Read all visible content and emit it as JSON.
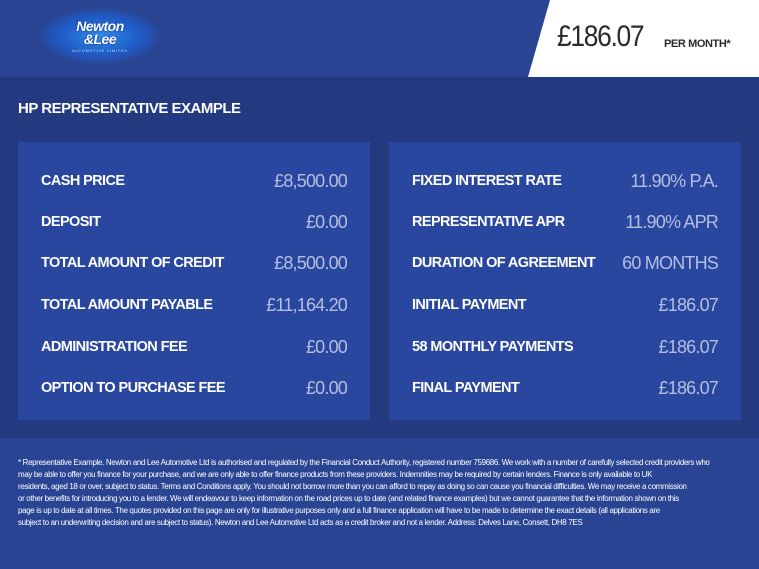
{
  "header": {
    "logo": {
      "name": "Newton & Lee",
      "tagline": "AUTOMOTIVE LIMITED"
    },
    "price": "£186.07",
    "price_suffix": "PER MONTH*"
  },
  "section_title": "HP REPRESENTATIVE EXAMPLE",
  "left_panel": [
    {
      "label": "CASH PRICE",
      "value": "£8,500.00"
    },
    {
      "label": "DEPOSIT",
      "value": "£0.00"
    },
    {
      "label": "TOTAL AMOUNT OF CREDIT",
      "value": "£8,500.00"
    },
    {
      "label": "TOTAL AMOUNT PAYABLE",
      "value": "£11,164.20"
    },
    {
      "label": "ADMINISTRATION FEE",
      "value": "£0.00"
    },
    {
      "label": "OPTION TO PURCHASE FEE",
      "value": "£0.00"
    }
  ],
  "right_panel": [
    {
      "label": "FIXED INTEREST RATE",
      "value": "11.90% P.A."
    },
    {
      "label": "REPRESENTATIVE APR",
      "value": "11.90% APR"
    },
    {
      "label": "DURATION OF AGREEMENT",
      "value": "60 MONTHS"
    },
    {
      "label": "INITIAL PAYMENT",
      "value": "£186.07"
    },
    {
      "label": "58 MONTHLY PAYMENTS",
      "value": "£186.07"
    },
    {
      "label": "FINAL PAYMENT",
      "value": "£186.07"
    }
  ],
  "disclaimer_lines": [
    "* Representative Example. Newton and Lee Automotive Ltd is authorised and regulated by the Financial Conduct Authority, registered number 759686. We work with a number of carefully selected credit providers who",
    "may be able to offer you finance for your purchase, and we are only able to offer finance products from these providers. Indemnities may be required by certain lenders. Finance is only available to UK",
    "residents, aged 18 or over, subject to status. Terms and Conditions apply. You should not borrow more than you can afford to repay as doing so can cause you financial difficulties. We may receive a commission",
    "or other benefits for introducing you to a lender. We will endeavour to keep information on the road prices up to date (and related finance examples) but we cannot guarantee that the information shown on this",
    "page is up to date at all times. The quotes provided on this page are only for illustrative purposes only and a full finance application will have to be made to determine the exact details (all applications are",
    "subject to an underwriting decision and are subject to status). Newton and Lee Automotive Ltd acts as a credit broker and not a lender. Address: Delves Lane, Consett, DH8 7ES"
  ]
}
